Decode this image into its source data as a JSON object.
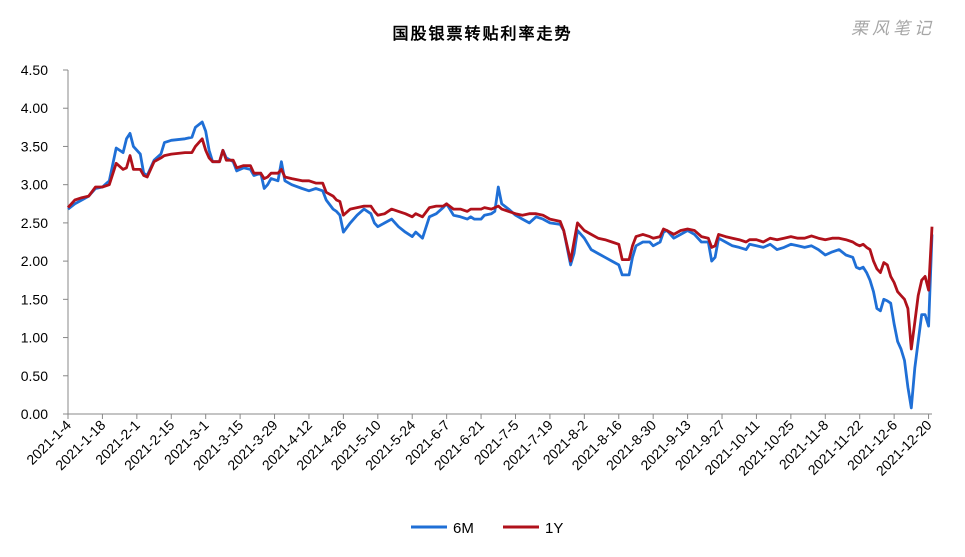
{
  "title": "国股银票转贴利率走势",
  "watermark": "栗风笔记",
  "colors": {
    "6M": "#1f6fd6",
    "1Y": "#b0111b"
  },
  "chart_data": {
    "type": "line",
    "title": "国股银票转贴利率走势",
    "ylim": [
      0,
      4.5
    ],
    "yticks": [
      "0.00",
      "0.50",
      "1.00",
      "1.50",
      "2.00",
      "2.50",
      "3.00",
      "3.50",
      "4.00",
      "4.50"
    ],
    "grid": false,
    "legend": "bottom-center",
    "xticks": [
      "2021-1-4",
      "2021-1-18",
      "2021-2-1",
      "2021-2-15",
      "2021-3-1",
      "2021-3-15",
      "2021-3-29",
      "2021-4-12",
      "2021-4-26",
      "2021-5-10",
      "2021-5-24",
      "2021-6-7",
      "2021-6-21",
      "2021-7-5",
      "2021-7-19",
      "2021-8-2",
      "2021-8-16",
      "2021-8-30",
      "2021-9-13",
      "2021-9-27",
      "2021-10-11",
      "2021-10-25",
      "2021-11-8",
      "2021-11-22",
      "2021-12-6",
      "2021-12-20"
    ],
    "series": [
      {
        "name": "6M",
        "points": [
          [
            0,
            2.68
          ],
          [
            2,
            2.75
          ],
          [
            4,
            2.8
          ],
          [
            6,
            2.85
          ],
          [
            8,
            2.95
          ],
          [
            10,
            2.97
          ],
          [
            12,
            3.05
          ],
          [
            14,
            3.48
          ],
          [
            16,
            3.42
          ],
          [
            17,
            3.6
          ],
          [
            18,
            3.67
          ],
          [
            19,
            3.5
          ],
          [
            21,
            3.4
          ],
          [
            22,
            3.15
          ],
          [
            23,
            3.12
          ],
          [
            25,
            3.32
          ],
          [
            27,
            3.4
          ],
          [
            28,
            3.55
          ],
          [
            30,
            3.58
          ],
          [
            34,
            3.6
          ],
          [
            36,
            3.62
          ],
          [
            37,
            3.75
          ],
          [
            39,
            3.82
          ],
          [
            40,
            3.7
          ],
          [
            41,
            3.45
          ],
          [
            42,
            3.3
          ],
          [
            44,
            3.3
          ],
          [
            45,
            3.45
          ],
          [
            46,
            3.35
          ],
          [
            48,
            3.3
          ],
          [
            49,
            3.18
          ],
          [
            51,
            3.22
          ],
          [
            53,
            3.2
          ],
          [
            54,
            3.12
          ],
          [
            56,
            3.15
          ],
          [
            57,
            2.95
          ],
          [
            58,
            3.0
          ],
          [
            59,
            3.08
          ],
          [
            61,
            3.05
          ],
          [
            62,
            3.3
          ],
          [
            63,
            3.05
          ],
          [
            65,
            3.0
          ],
          [
            68,
            2.95
          ],
          [
            70,
            2.92
          ],
          [
            72,
            2.95
          ],
          [
            74,
            2.92
          ],
          [
            75,
            2.8
          ],
          [
            77,
            2.68
          ],
          [
            78,
            2.65
          ],
          [
            79,
            2.6
          ],
          [
            80,
            2.38
          ],
          [
            82,
            2.5
          ],
          [
            84,
            2.6
          ],
          [
            86,
            2.68
          ],
          [
            88,
            2.62
          ],
          [
            89,
            2.5
          ],
          [
            90,
            2.45
          ],
          [
            92,
            2.5
          ],
          [
            94,
            2.55
          ],
          [
            96,
            2.45
          ],
          [
            98,
            2.38
          ],
          [
            100,
            2.32
          ],
          [
            101,
            2.38
          ],
          [
            103,
            2.3
          ],
          [
            105,
            2.58
          ],
          [
            107,
            2.62
          ],
          [
            109,
            2.7
          ],
          [
            110,
            2.75
          ],
          [
            112,
            2.6
          ],
          [
            114,
            2.58
          ],
          [
            116,
            2.55
          ],
          [
            117,
            2.58
          ],
          [
            118,
            2.55
          ],
          [
            120,
            2.55
          ],
          [
            121,
            2.6
          ],
          [
            123,
            2.62
          ],
          [
            124,
            2.65
          ],
          [
            125,
            2.97
          ],
          [
            126,
            2.75
          ],
          [
            128,
            2.68
          ],
          [
            130,
            2.6
          ],
          [
            132,
            2.55
          ],
          [
            134,
            2.5
          ],
          [
            136,
            2.58
          ],
          [
            138,
            2.55
          ],
          [
            140,
            2.5
          ],
          [
            143,
            2.48
          ],
          [
            144,
            2.4
          ],
          [
            146,
            1.95
          ],
          [
            147,
            2.1
          ],
          [
            148,
            2.4
          ],
          [
            150,
            2.3
          ],
          [
            152,
            2.15
          ],
          [
            154,
            2.1
          ],
          [
            156,
            2.05
          ],
          [
            158,
            2.0
          ],
          [
            160,
            1.95
          ],
          [
            161,
            1.82
          ],
          [
            163,
            1.82
          ],
          [
            164,
            2.05
          ],
          [
            165,
            2.2
          ],
          [
            167,
            2.25
          ],
          [
            169,
            2.25
          ],
          [
            170,
            2.2
          ],
          [
            172,
            2.25
          ],
          [
            173,
            2.38
          ],
          [
            174,
            2.4
          ],
          [
            176,
            2.3
          ],
          [
            178,
            2.35
          ],
          [
            180,
            2.4
          ],
          [
            182,
            2.35
          ],
          [
            184,
            2.25
          ],
          [
            186,
            2.25
          ],
          [
            187,
            2.0
          ],
          [
            188,
            2.05
          ],
          [
            189,
            2.3
          ],
          [
            191,
            2.25
          ],
          [
            193,
            2.2
          ],
          [
            195,
            2.18
          ],
          [
            197,
            2.15
          ],
          [
            198,
            2.22
          ],
          [
            200,
            2.2
          ],
          [
            202,
            2.18
          ],
          [
            204,
            2.22
          ],
          [
            206,
            2.15
          ],
          [
            208,
            2.18
          ],
          [
            210,
            2.22
          ],
          [
            212,
            2.2
          ],
          [
            214,
            2.18
          ],
          [
            216,
            2.2
          ],
          [
            218,
            2.15
          ],
          [
            220,
            2.08
          ],
          [
            222,
            2.12
          ],
          [
            224,
            2.15
          ],
          [
            226,
            2.08
          ],
          [
            228,
            2.05
          ],
          [
            229,
            1.92
          ],
          [
            230,
            1.9
          ],
          [
            231,
            1.92
          ],
          [
            232,
            1.85
          ],
          [
            233,
            1.75
          ],
          [
            234,
            1.6
          ],
          [
            235,
            1.38
          ],
          [
            236,
            1.35
          ],
          [
            237,
            1.5
          ],
          [
            238,
            1.48
          ],
          [
            239,
            1.45
          ],
          [
            240,
            1.18
          ],
          [
            241,
            0.95
          ],
          [
            242,
            0.85
          ],
          [
            243,
            0.7
          ],
          [
            244,
            0.35
          ],
          [
            245,
            0.08
          ],
          [
            246,
            0.6
          ],
          [
            247,
            0.95
          ],
          [
            248,
            1.3
          ],
          [
            249,
            1.3
          ],
          [
            250,
            1.15
          ],
          [
            251,
            2.35
          ]
        ]
      },
      {
        "name": "1Y",
        "points": [
          [
            0,
            2.7
          ],
          [
            2,
            2.8
          ],
          [
            4,
            2.83
          ],
          [
            6,
            2.85
          ],
          [
            8,
            2.97
          ],
          [
            10,
            2.97
          ],
          [
            12,
            3.0
          ],
          [
            14,
            3.28
          ],
          [
            16,
            3.2
          ],
          [
            17,
            3.22
          ],
          [
            18,
            3.38
          ],
          [
            19,
            3.2
          ],
          [
            21,
            3.2
          ],
          [
            22,
            3.12
          ],
          [
            23,
            3.1
          ],
          [
            25,
            3.3
          ],
          [
            27,
            3.35
          ],
          [
            28,
            3.38
          ],
          [
            30,
            3.4
          ],
          [
            34,
            3.42
          ],
          [
            36,
            3.42
          ],
          [
            37,
            3.5
          ],
          [
            39,
            3.6
          ],
          [
            40,
            3.45
          ],
          [
            41,
            3.35
          ],
          [
            42,
            3.3
          ],
          [
            44,
            3.3
          ],
          [
            45,
            3.45
          ],
          [
            46,
            3.32
          ],
          [
            48,
            3.32
          ],
          [
            49,
            3.22
          ],
          [
            51,
            3.25
          ],
          [
            53,
            3.25
          ],
          [
            54,
            3.15
          ],
          [
            56,
            3.15
          ],
          [
            57,
            3.08
          ],
          [
            58,
            3.1
          ],
          [
            59,
            3.15
          ],
          [
            61,
            3.15
          ],
          [
            62,
            3.2
          ],
          [
            63,
            3.1
          ],
          [
            65,
            3.08
          ],
          [
            68,
            3.05
          ],
          [
            70,
            3.05
          ],
          [
            72,
            3.02
          ],
          [
            74,
            3.02
          ],
          [
            75,
            2.9
          ],
          [
            77,
            2.85
          ],
          [
            78,
            2.8
          ],
          [
            79,
            2.78
          ],
          [
            80,
            2.6
          ],
          [
            82,
            2.68
          ],
          [
            84,
            2.7
          ],
          [
            86,
            2.72
          ],
          [
            88,
            2.72
          ],
          [
            89,
            2.65
          ],
          [
            90,
            2.6
          ],
          [
            92,
            2.62
          ],
          [
            94,
            2.68
          ],
          [
            96,
            2.65
          ],
          [
            98,
            2.62
          ],
          [
            100,
            2.58
          ],
          [
            101,
            2.62
          ],
          [
            103,
            2.58
          ],
          [
            105,
            2.7
          ],
          [
            107,
            2.72
          ],
          [
            109,
            2.72
          ],
          [
            110,
            2.75
          ],
          [
            112,
            2.68
          ],
          [
            114,
            2.68
          ],
          [
            116,
            2.65
          ],
          [
            117,
            2.68
          ],
          [
            118,
            2.68
          ],
          [
            120,
            2.68
          ],
          [
            121,
            2.7
          ],
          [
            123,
            2.68
          ],
          [
            124,
            2.7
          ],
          [
            125,
            2.72
          ],
          [
            126,
            2.68
          ],
          [
            128,
            2.65
          ],
          [
            130,
            2.62
          ],
          [
            132,
            2.6
          ],
          [
            134,
            2.62
          ],
          [
            136,
            2.62
          ],
          [
            138,
            2.6
          ],
          [
            140,
            2.55
          ],
          [
            143,
            2.52
          ],
          [
            144,
            2.4
          ],
          [
            146,
            2.0
          ],
          [
            147,
            2.25
          ],
          [
            148,
            2.5
          ],
          [
            150,
            2.4
          ],
          [
            152,
            2.35
          ],
          [
            154,
            2.3
          ],
          [
            156,
            2.28
          ],
          [
            158,
            2.25
          ],
          [
            160,
            2.22
          ],
          [
            161,
            2.02
          ],
          [
            163,
            2.02
          ],
          [
            164,
            2.2
          ],
          [
            165,
            2.32
          ],
          [
            167,
            2.35
          ],
          [
            169,
            2.32
          ],
          [
            170,
            2.3
          ],
          [
            172,
            2.32
          ],
          [
            173,
            2.42
          ],
          [
            174,
            2.4
          ],
          [
            176,
            2.35
          ],
          [
            178,
            2.4
          ],
          [
            180,
            2.42
          ],
          [
            182,
            2.4
          ],
          [
            184,
            2.32
          ],
          [
            186,
            2.3
          ],
          [
            187,
            2.18
          ],
          [
            188,
            2.2
          ],
          [
            189,
            2.35
          ],
          [
            191,
            2.32
          ],
          [
            193,
            2.3
          ],
          [
            195,
            2.28
          ],
          [
            197,
            2.25
          ],
          [
            198,
            2.28
          ],
          [
            200,
            2.28
          ],
          [
            202,
            2.25
          ],
          [
            204,
            2.3
          ],
          [
            206,
            2.28
          ],
          [
            208,
            2.3
          ],
          [
            210,
            2.32
          ],
          [
            212,
            2.3
          ],
          [
            214,
            2.3
          ],
          [
            216,
            2.33
          ],
          [
            218,
            2.3
          ],
          [
            220,
            2.28
          ],
          [
            222,
            2.3
          ],
          [
            224,
            2.3
          ],
          [
            226,
            2.28
          ],
          [
            228,
            2.25
          ],
          [
            229,
            2.22
          ],
          [
            230,
            2.2
          ],
          [
            231,
            2.22
          ],
          [
            232,
            2.18
          ],
          [
            233,
            2.15
          ],
          [
            234,
            2.0
          ],
          [
            235,
            1.9
          ],
          [
            236,
            1.85
          ],
          [
            237,
            1.98
          ],
          [
            238,
            1.95
          ],
          [
            239,
            1.8
          ],
          [
            240,
            1.72
          ],
          [
            241,
            1.6
          ],
          [
            242,
            1.55
          ],
          [
            243,
            1.5
          ],
          [
            244,
            1.38
          ],
          [
            245,
            0.85
          ],
          [
            246,
            1.2
          ],
          [
            247,
            1.55
          ],
          [
            248,
            1.75
          ],
          [
            249,
            1.8
          ],
          [
            250,
            1.62
          ],
          [
            251,
            2.45
          ]
        ]
      }
    ]
  }
}
